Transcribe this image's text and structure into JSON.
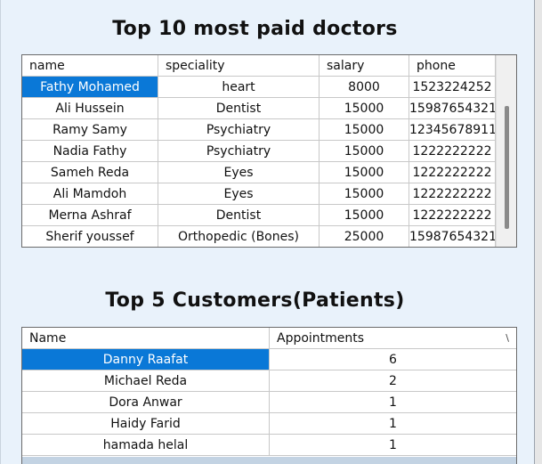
{
  "doctors_section": {
    "title": "Top 10 most paid doctors",
    "columns": [
      "name",
      "speciality",
      "salary",
      "phone"
    ],
    "rows": [
      [
        "Fathy Mohamed",
        "heart",
        "8000",
        "1523224252"
      ],
      [
        "Ali Hussein",
        "Dentist",
        "15000",
        "15987654321"
      ],
      [
        "Ramy Samy",
        "Psychiatry",
        "15000",
        "12345678911"
      ],
      [
        "Nadia Fathy",
        "Psychiatry",
        "15000",
        "1222222222"
      ],
      [
        "Sameh Reda",
        "Eyes",
        "15000",
        "1222222222"
      ],
      [
        "Ali Mamdoh",
        "Eyes",
        "15000",
        "1222222222"
      ],
      [
        "Merna Ashraf",
        "Dentist",
        "15000",
        "1222222222"
      ],
      [
        "Sherif youssef",
        "Orthopedic (Bones)",
        "25000",
        "15987654321"
      ]
    ],
    "selected_row": 0
  },
  "patients_section": {
    "title": "Top 5 Customers(Patients)",
    "columns": [
      "Name",
      "Appointments"
    ],
    "sort_glyph": "\\",
    "rows": [
      [
        "Danny  Raafat",
        "6"
      ],
      [
        "Michael Reda",
        "2"
      ],
      [
        "Dora Anwar",
        "1"
      ],
      [
        "Haidy Farid",
        "1"
      ],
      [
        "hamada helal",
        "1"
      ]
    ],
    "selected_row": 0
  },
  "colors": {
    "selection": "#0a78d7",
    "background": "#e9f2fb"
  }
}
